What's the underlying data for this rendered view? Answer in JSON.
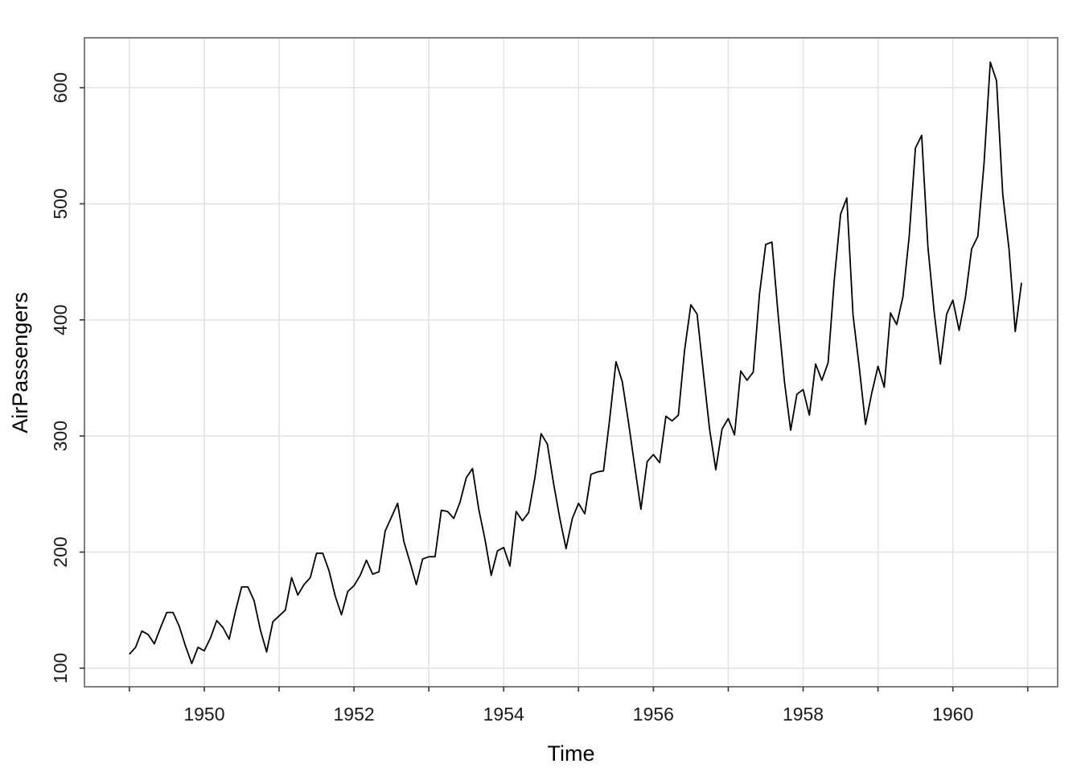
{
  "chart_data": {
    "type": "line",
    "title": "",
    "xlabel": "Time",
    "ylabel": "AirPassengers",
    "xlim": [
      1948.4,
      1961.4
    ],
    "ylim": [
      84,
      643
    ],
    "grid": true,
    "x_ticks": [
      1950,
      1952,
      1954,
      1956,
      1958,
      1960
    ],
    "x_tick_labels": [
      "1950",
      "1952",
      "1954",
      "1956",
      "1958",
      "1960"
    ],
    "x_minor_ticks": [
      1949,
      1951,
      1953,
      1955,
      1957,
      1959,
      1961
    ],
    "y_ticks": [
      100,
      200,
      300,
      400,
      500,
      600
    ],
    "y_tick_labels": [
      "100",
      "200",
      "300",
      "400",
      "500",
      "600"
    ],
    "x_start": 1949,
    "x_frequency": 12,
    "series": [
      {
        "values": [
          112,
          118,
          132,
          129,
          121,
          135,
          148,
          148,
          136,
          119,
          104,
          118,
          115,
          126,
          141,
          135,
          125,
          149,
          170,
          170,
          158,
          133,
          114,
          140,
          145,
          150,
          178,
          163,
          172,
          178,
          199,
          199,
          184,
          162,
          146,
          166,
          171,
          180,
          193,
          181,
          183,
          218,
          230,
          242,
          209,
          191,
          172,
          194,
          196,
          196,
          236,
          235,
          229,
          243,
          264,
          272,
          237,
          211,
          180,
          201,
          204,
          188,
          235,
          227,
          234,
          264,
          302,
          293,
          259,
          229,
          203,
          229,
          242,
          233,
          267,
          269,
          270,
          315,
          364,
          347,
          312,
          274,
          237,
          278,
          284,
          277,
          317,
          313,
          318,
          374,
          413,
          405,
          355,
          306,
          271,
          306,
          315,
          301,
          356,
          348,
          355,
          422,
          465,
          467,
          404,
          347,
          305,
          336,
          340,
          318,
          362,
          348,
          363,
          435,
          491,
          505,
          404,
          359,
          310,
          337,
          360,
          342,
          406,
          396,
          420,
          472,
          548,
          559,
          463,
          407,
          362,
          405,
          417,
          391,
          419,
          461,
          472,
          535,
          622,
          606,
          508,
          461,
          390,
          432
        ]
      }
    ]
  }
}
